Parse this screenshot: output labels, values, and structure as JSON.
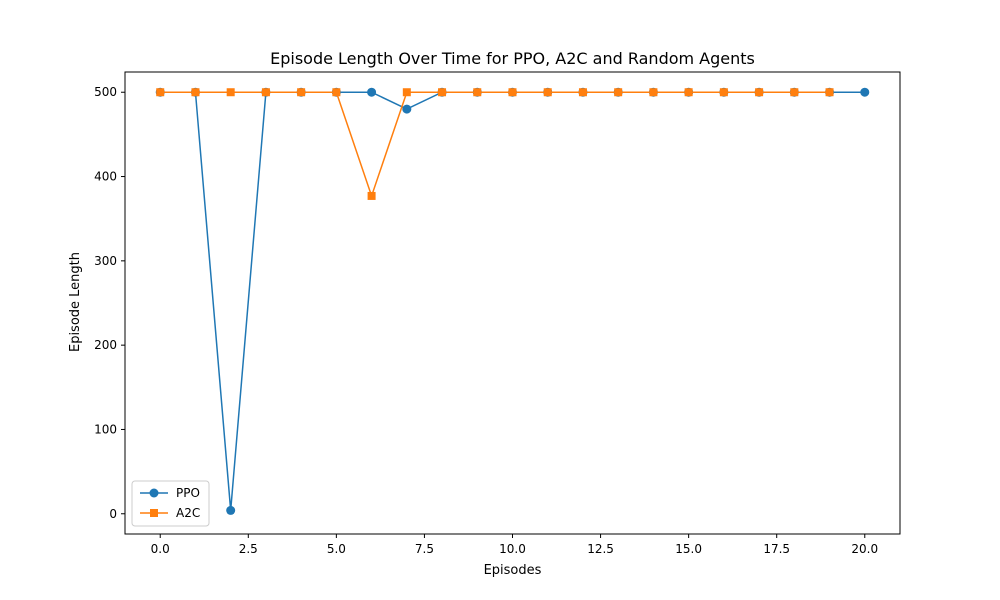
{
  "chart_data": {
    "type": "line",
    "title": "Episode Length Over Time for PPO, A2C and Random Agents",
    "xlabel": "Episodes",
    "ylabel": "Episode Length",
    "xlim": [
      -1,
      21
    ],
    "ylim": [
      -24,
      524
    ],
    "xticks": [
      0.0,
      2.5,
      5.0,
      7.5,
      10.0,
      12.5,
      15.0,
      17.5,
      20.0
    ],
    "xtick_labels": [
      "0.0",
      "2.5",
      "5.0",
      "7.5",
      "10.0",
      "12.5",
      "15.0",
      "17.5",
      "20.0"
    ],
    "yticks": [
      0,
      100,
      200,
      300,
      400,
      500
    ],
    "ytick_labels": [
      "0",
      "100",
      "200",
      "300",
      "400",
      "500"
    ],
    "grid": false,
    "legend_position": "bottom-left",
    "series": [
      {
        "name": "PPO",
        "color": "#1f77b4",
        "marker": "circle",
        "x": [
          0,
          1,
          2,
          3,
          4,
          5,
          6,
          7,
          8,
          9,
          10,
          11,
          12,
          13,
          14,
          15,
          16,
          17,
          18,
          19,
          20
        ],
        "values": [
          500,
          500,
          4,
          500,
          500,
          500,
          500,
          480,
          500,
          500,
          500,
          500,
          500,
          500,
          500,
          500,
          500,
          500,
          500,
          500,
          500
        ]
      },
      {
        "name": "A2C",
        "color": "#ff7f0e",
        "marker": "square",
        "x": [
          0,
          1,
          2,
          3,
          4,
          5,
          6,
          7,
          8,
          9,
          10,
          11,
          12,
          13,
          14,
          15,
          16,
          17,
          18,
          19
        ],
        "values": [
          500,
          500,
          500,
          500,
          500,
          500,
          377,
          500,
          500,
          500,
          500,
          500,
          500,
          500,
          500,
          500,
          500,
          500,
          500,
          500
        ]
      }
    ]
  }
}
